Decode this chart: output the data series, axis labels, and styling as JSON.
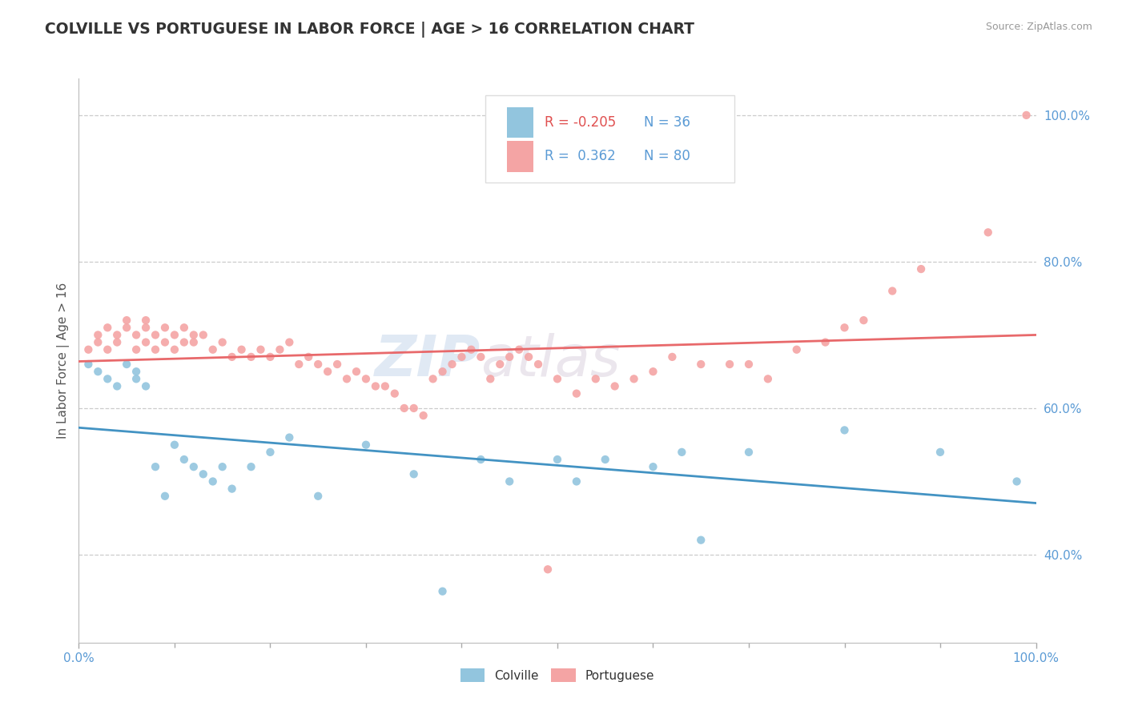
{
  "title": "COLVILLE VS PORTUGUESE IN LABOR FORCE | AGE > 16 CORRELATION CHART",
  "source_text": "Source: ZipAtlas.com",
  "ylabel": "In Labor Force | Age > 16",
  "xlim": [
    0.0,
    1.0
  ],
  "ylim": [
    0.28,
    1.05
  ],
  "y_ticks": [
    0.4,
    0.6,
    0.8,
    1.0
  ],
  "y_tick_labels": [
    "40.0%",
    "60.0%",
    "80.0%",
    "100.0%"
  ],
  "grid_color": "#cccccc",
  "background_color": "#ffffff",
  "legend_R_colville": "-0.205",
  "legend_N_colville": "36",
  "legend_R_portuguese": " 0.362",
  "legend_N_portuguese": "80",
  "colville_color": "#92c5de",
  "portuguese_color": "#f4a4a4",
  "colville_line_color": "#4393c3",
  "portuguese_line_color": "#e8696b",
  "colville_x": [
    0.01,
    0.02,
    0.03,
    0.04,
    0.05,
    0.06,
    0.06,
    0.07,
    0.08,
    0.09,
    0.1,
    0.11,
    0.12,
    0.13,
    0.14,
    0.15,
    0.16,
    0.18,
    0.2,
    0.22,
    0.25,
    0.3,
    0.35,
    0.38,
    0.42,
    0.45,
    0.5,
    0.52,
    0.55,
    0.6,
    0.63,
    0.65,
    0.7,
    0.8,
    0.9,
    0.98
  ],
  "colville_y": [
    0.66,
    0.65,
    0.64,
    0.63,
    0.66,
    0.64,
    0.65,
    0.63,
    0.52,
    0.48,
    0.55,
    0.53,
    0.52,
    0.51,
    0.5,
    0.52,
    0.49,
    0.52,
    0.54,
    0.56,
    0.48,
    0.55,
    0.51,
    0.35,
    0.53,
    0.5,
    0.53,
    0.5,
    0.53,
    0.52,
    0.54,
    0.42,
    0.54,
    0.57,
    0.54,
    0.5
  ],
  "portuguese_x": [
    0.01,
    0.02,
    0.02,
    0.03,
    0.03,
    0.04,
    0.04,
    0.05,
    0.05,
    0.06,
    0.06,
    0.07,
    0.07,
    0.07,
    0.08,
    0.08,
    0.09,
    0.09,
    0.1,
    0.1,
    0.11,
    0.11,
    0.12,
    0.12,
    0.13,
    0.14,
    0.15,
    0.16,
    0.17,
    0.18,
    0.19,
    0.2,
    0.21,
    0.22,
    0.23,
    0.24,
    0.25,
    0.26,
    0.27,
    0.28,
    0.29,
    0.3,
    0.31,
    0.32,
    0.33,
    0.34,
    0.35,
    0.36,
    0.37,
    0.38,
    0.39,
    0.4,
    0.41,
    0.42,
    0.43,
    0.44,
    0.45,
    0.46,
    0.47,
    0.48,
    0.49,
    0.5,
    0.52,
    0.54,
    0.56,
    0.58,
    0.6,
    0.62,
    0.65,
    0.68,
    0.7,
    0.72,
    0.75,
    0.78,
    0.8,
    0.82,
    0.85,
    0.88,
    0.95,
    0.99
  ],
  "portuguese_y": [
    0.68,
    0.69,
    0.7,
    0.71,
    0.68,
    0.69,
    0.7,
    0.71,
    0.72,
    0.68,
    0.7,
    0.69,
    0.71,
    0.72,
    0.68,
    0.7,
    0.69,
    0.71,
    0.68,
    0.7,
    0.69,
    0.71,
    0.7,
    0.69,
    0.7,
    0.68,
    0.69,
    0.67,
    0.68,
    0.67,
    0.68,
    0.67,
    0.68,
    0.69,
    0.66,
    0.67,
    0.66,
    0.65,
    0.66,
    0.64,
    0.65,
    0.64,
    0.63,
    0.63,
    0.62,
    0.6,
    0.6,
    0.59,
    0.64,
    0.65,
    0.66,
    0.67,
    0.68,
    0.67,
    0.64,
    0.66,
    0.67,
    0.68,
    0.67,
    0.66,
    0.38,
    0.64,
    0.62,
    0.64,
    0.63,
    0.64,
    0.65,
    0.67,
    0.66,
    0.66,
    0.66,
    0.64,
    0.68,
    0.69,
    0.71,
    0.72,
    0.76,
    0.79,
    0.84,
    1.0
  ]
}
